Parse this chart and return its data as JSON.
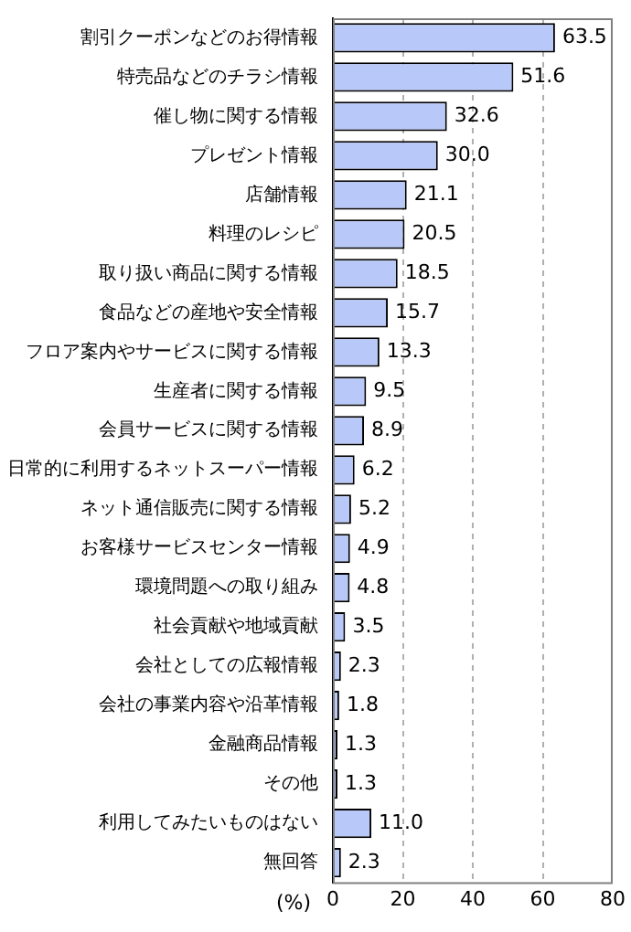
{
  "chart_data": {
    "type": "bar",
    "orientation": "horizontal",
    "xlabel": "(%)",
    "categories": [
      "割引クーポンなどのお得情報",
      "特売品などのチラシ情報",
      "催し物に関する情報",
      "プレゼント情報",
      "店舗情報",
      "料理のレシピ",
      "取り扱い商品に関する情報",
      "食品などの産地や安全情報",
      "フロア案内やサービスに関する情報",
      "生産者に関する情報",
      "会員サービスに関する情報",
      "日常的に利用するネットスーパー情報",
      "ネット通信販売に関する情報",
      "お客様サービスセンター情報",
      "環境問題への取り組み",
      "社会貢献や地域貢献",
      "会社としての広報情報",
      "会社の事業内容や沿革情報",
      "金融商品情報",
      "その他",
      "利用してみたいものはない",
      "無回答"
    ],
    "values": [
      63.5,
      51.6,
      32.6,
      30.0,
      21.1,
      20.5,
      18.5,
      15.7,
      13.3,
      9.5,
      8.9,
      6.2,
      5.2,
      4.9,
      4.8,
      3.5,
      2.3,
      1.8,
      1.3,
      1.3,
      11.0,
      2.3
    ],
    "value_labels": [
      "63.5",
      "51.6",
      "32.6",
      "30.0",
      "21.1",
      "20.5",
      "18.5",
      "15.7",
      "13.3",
      "9.5",
      "8.9",
      "6.2",
      "5.2",
      "4.9",
      "4.8",
      "3.5",
      "2.3",
      "1.8",
      "1.3",
      "1.3",
      "11.0",
      "2.3"
    ],
    "color": "#b8c8f8",
    "xlim": [
      0,
      80
    ],
    "xticks": [
      0,
      20,
      40,
      60,
      80
    ],
    "grid": "x",
    "legend": false
  }
}
